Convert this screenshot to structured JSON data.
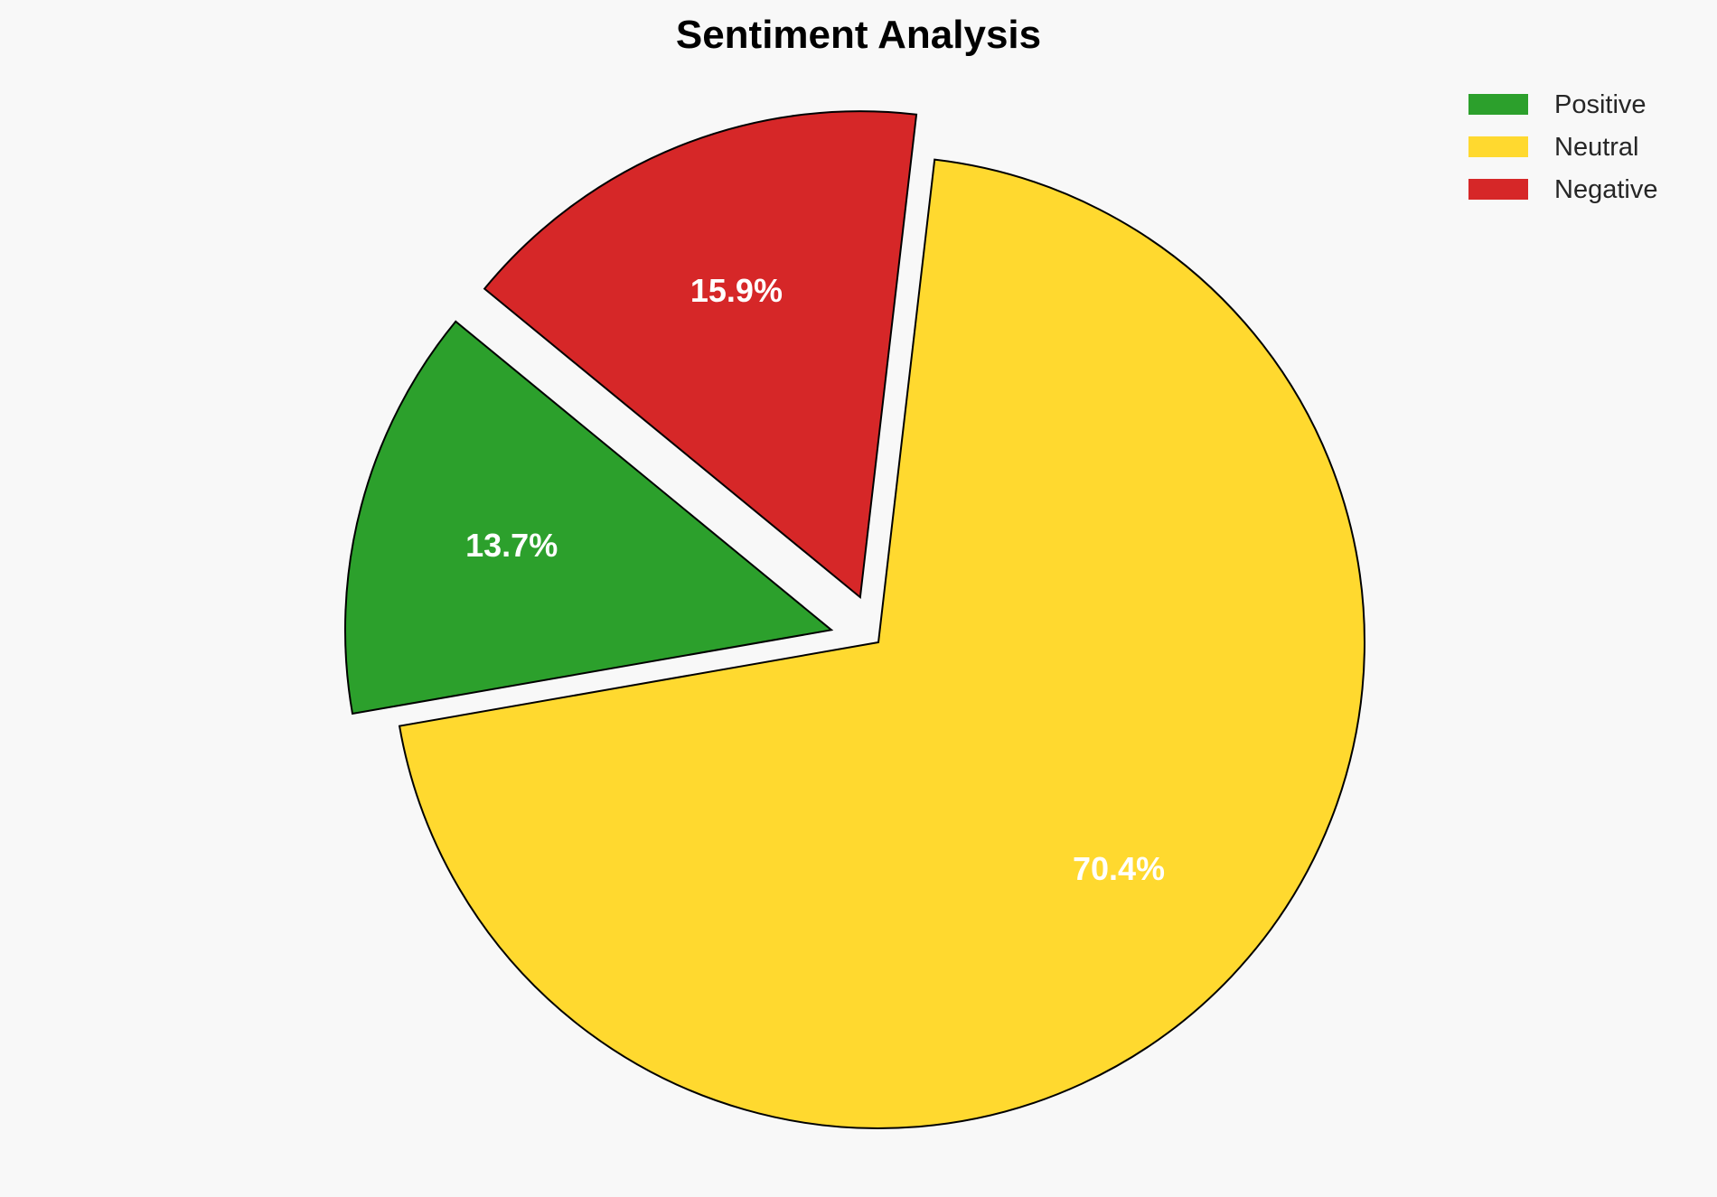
{
  "chart_data": {
    "type": "pie",
    "title": "Sentiment Analysis",
    "categories": [
      "Positive",
      "Neutral",
      "Negative"
    ],
    "values": [
      13.7,
      70.4,
      15.9
    ],
    "data_labels": [
      "13.7%",
      "70.4%",
      "15.9%"
    ],
    "colors": [
      "#2ca02c",
      "#ffd92f",
      "#d62728"
    ],
    "explode": [
      0.1,
      0,
      0.1
    ],
    "start_angle_deg": 140.6,
    "direction": "counterclockwise",
    "legend_placement": "top-right",
    "background": "#f8f8f8"
  }
}
